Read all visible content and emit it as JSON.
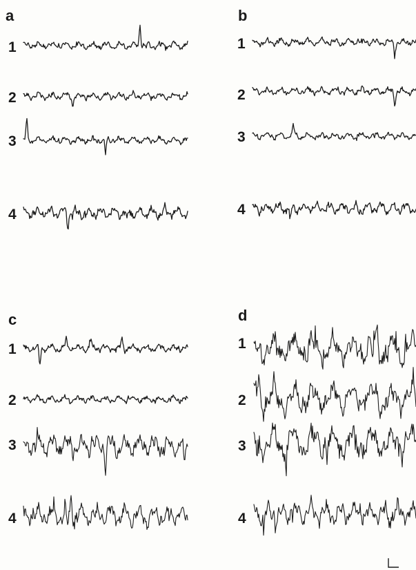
{
  "panels": [
    {
      "letter": "a",
      "traces": [
        {
          "label": "1",
          "amplitude": "low",
          "events": [
            {
              "pos": 0.71,
              "dir": "up",
              "size": 1.9
            }
          ]
        },
        {
          "label": "2",
          "amplitude": "low",
          "events": [
            {
              "pos": 0.3,
              "dir": "down",
              "size": 0.9
            }
          ]
        },
        {
          "label": "3",
          "amplitude": "low",
          "events": [
            {
              "pos": 0.02,
              "dir": "up",
              "size": 1.8
            },
            {
              "pos": 0.5,
              "dir": "down",
              "size": 1.2
            }
          ]
        },
        {
          "label": "4",
          "amplitude": "medium",
          "events": [
            {
              "pos": 0.27,
              "dir": "down",
              "size": 1.2
            },
            {
              "pos": 0.63,
              "dir": "down",
              "size": 1.0
            }
          ]
        }
      ]
    },
    {
      "letter": "b",
      "traces": [
        {
          "label": "1",
          "amplitude": "low",
          "events": [
            {
              "pos": 0.87,
              "dir": "down",
              "size": 0.8
            }
          ]
        },
        {
          "label": "2",
          "amplitude": "low",
          "events": [
            {
              "pos": 0.87,
              "dir": "down",
              "size": 1.0
            }
          ]
        },
        {
          "label": "3",
          "amplitude": "low",
          "events": [
            {
              "pos": 0.25,
              "dir": "up",
              "size": 1.0
            }
          ]
        },
        {
          "label": "4",
          "amplitude": "medium",
          "events": [
            {
              "pos": 0.23,
              "dir": "down",
              "size": 1.2
            }
          ]
        }
      ]
    },
    {
      "letter": "c",
      "traces": [
        {
          "label": "1",
          "amplitude": "low",
          "events": [
            {
              "pos": 0.1,
              "dir": "down",
              "size": 1.4
            },
            {
              "pos": 0.26,
              "dir": "up",
              "size": 0.8
            },
            {
              "pos": 0.41,
              "dir": "up",
              "size": 0.8
            },
            {
              "pos": 0.6,
              "dir": "up",
              "size": 1.0
            }
          ]
        },
        {
          "label": "2",
          "amplitude": "low",
          "events": []
        },
        {
          "label": "3",
          "amplitude": "high",
          "events": [
            {
              "pos": 0.5,
              "dir": "down",
              "size": 2.0
            },
            {
              "pos": 0.98,
              "dir": "down",
              "size": 1.8
            }
          ]
        },
        {
          "label": "4",
          "amplitude": "high",
          "events": [
            {
              "pos": 0.29,
              "dir": "up",
              "size": 1.7
            },
            {
              "pos": 0.27,
              "dir": "down",
              "size": 1.3
            }
          ]
        }
      ]
    },
    {
      "letter": "d",
      "traces": [
        {
          "label": "1",
          "amplitude": "very-high",
          "events": [
            {
              "pos": 0.76,
              "dir": "up",
              "size": 1.5
            },
            {
              "pos": 0.73,
              "dir": "down",
              "size": 1.2
            }
          ]
        },
        {
          "label": "2",
          "amplitude": "very-high",
          "events": [
            {
              "pos": 0.03,
              "dir": "up",
              "size": 1.3
            }
          ]
        },
        {
          "label": "3",
          "amplitude": "very-high",
          "events": [
            {
              "pos": 0.2,
              "dir": "down",
              "size": 2.0
            },
            {
              "pos": 0.45,
              "dir": "down",
              "size": 1.5
            },
            {
              "pos": 0.02,
              "dir": "down",
              "size": 1.2
            }
          ]
        },
        {
          "label": "4",
          "amplitude": "high",
          "events": [
            {
              "pos": 0.06,
              "dir": "down",
              "size": 1.5
            }
          ]
        }
      ]
    }
  ],
  "colors": {
    "trace": "#1c1c1c",
    "label": "#1a1a1a",
    "background": "#fdfdfb"
  },
  "scale_bar": {
    "present": true,
    "label": ""
  }
}
